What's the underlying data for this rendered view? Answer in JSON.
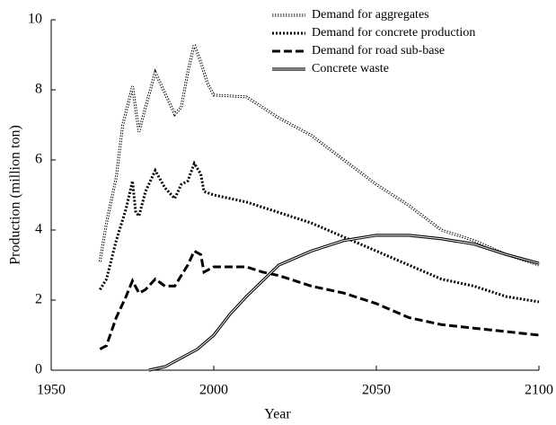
{
  "chart_data": {
    "type": "line",
    "xlabel": "Year",
    "ylabel": "Production (million ton)",
    "xlim": [
      1950,
      2100
    ],
    "xticks": [
      1950,
      2000,
      2050,
      2100
    ],
    "ylim": [
      0,
      10
    ],
    "yticks": [
      0,
      2,
      4,
      6,
      8,
      10
    ],
    "legend": "upper right",
    "series": [
      {
        "name": "Demand for aggregates",
        "color": "#000000",
        "style": "double-dotted",
        "x": [
          1965,
          1967,
          1970,
          1972,
          1975,
          1977,
          1979,
          1982,
          1985,
          1988,
          1990,
          1992,
          1994,
          1996,
          1998,
          2000,
          2010,
          2020,
          2030,
          2040,
          2050,
          2060,
          2070,
          2080,
          2090,
          2100
        ],
        "values": [
          3.1,
          4.2,
          5.5,
          7.0,
          8.1,
          6.8,
          7.5,
          8.5,
          7.9,
          7.3,
          7.5,
          8.5,
          9.3,
          8.8,
          8.2,
          7.85,
          7.8,
          7.2,
          6.7,
          6.0,
          5.3,
          4.7,
          4.0,
          3.7,
          3.3,
          3.0
        ]
      },
      {
        "name": "Demand for concrete production",
        "color": "#000000",
        "style": "dotted",
        "x": [
          1965,
          1967,
          1970,
          1973,
          1975,
          1976,
          1977,
          1979,
          1982,
          1985,
          1988,
          1990,
          1992,
          1994,
          1996,
          1997,
          2000,
          2010,
          2020,
          2030,
          2040,
          2050,
          2060,
          2070,
          2080,
          2090,
          2100
        ],
        "values": [
          2.3,
          2.6,
          3.7,
          4.6,
          5.4,
          4.5,
          4.4,
          5.1,
          5.7,
          5.2,
          4.9,
          5.3,
          5.4,
          5.9,
          5.6,
          5.1,
          5.0,
          4.8,
          4.5,
          4.2,
          3.8,
          3.4,
          3.0,
          2.6,
          2.4,
          2.1,
          1.95
        ]
      },
      {
        "name": "Demand for road sub-base",
        "color": "#000000",
        "style": "dashed",
        "x": [
          1965,
          1967,
          1970,
          1973,
          1975,
          1977,
          1979,
          1982,
          1985,
          1988,
          1990,
          1992,
          1994,
          1996,
          1997,
          2000,
          2010,
          2015,
          2020,
          2030,
          2040,
          2050,
          2060,
          2070,
          2080,
          2090,
          2100
        ],
        "values": [
          0.6,
          0.7,
          1.5,
          2.1,
          2.55,
          2.2,
          2.3,
          2.6,
          2.4,
          2.4,
          2.7,
          3.0,
          3.4,
          3.3,
          2.8,
          2.95,
          2.95,
          2.8,
          2.7,
          2.4,
          2.2,
          1.9,
          1.5,
          1.3,
          1.2,
          1.1,
          1.0
        ]
      },
      {
        "name": "Concrete waste",
        "color": "#000000",
        "style": "double",
        "x": [
          1980,
          1985,
          1990,
          1995,
          2000,
          2005,
          2010,
          2020,
          2030,
          2040,
          2050,
          2060,
          2070,
          2080,
          2090,
          2100
        ],
        "values": [
          0,
          0.1,
          0.35,
          0.6,
          1.0,
          1.6,
          2.1,
          3.0,
          3.4,
          3.7,
          3.85,
          3.85,
          3.75,
          3.6,
          3.3,
          3.05
        ]
      }
    ]
  }
}
